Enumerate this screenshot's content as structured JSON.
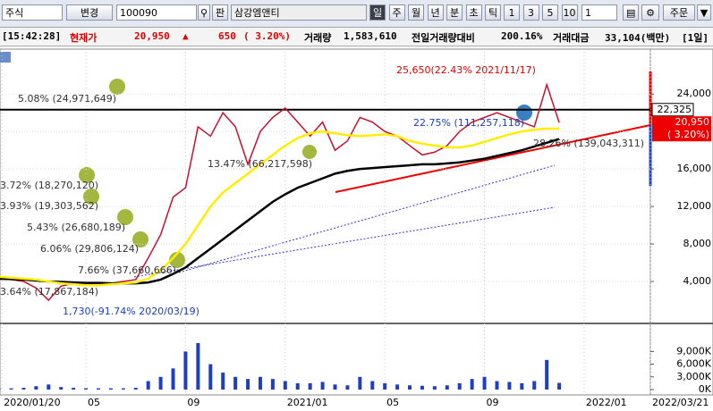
{
  "toolbar": {
    "market": "주식",
    "change": "변경",
    "code": "100090",
    "board": "판",
    "name": "삼강엠앤티",
    "periods": [
      "일",
      "주",
      "월",
      "년",
      "분",
      "초",
      "틱"
    ],
    "multipliers": [
      "1",
      "3",
      "5",
      "10"
    ],
    "count": "1",
    "order": "주문"
  },
  "status": {
    "time": "[15:42:28]",
    "price_label": "현재가",
    "price": "20,950",
    "arrow": "▲",
    "diff": "650",
    "rate": "( 3.20%)",
    "volume_label": "거래량",
    "volume": "1,583,610",
    "prev_label": "전일거래량대비",
    "prev": "200.16%",
    "amount_label": "거래대금",
    "amount": "33,104(백만)",
    "period": "[1일]"
  },
  "chart_data": {
    "type": "line",
    "x": [
      0.5,
      1,
      1.5,
      2,
      2.5,
      3,
      3.5,
      4,
      4.5,
      5,
      5.5,
      6,
      6.5,
      7,
      7.5,
      8,
      8.5,
      9,
      9.5,
      10,
      10.5,
      11,
      11.5,
      12,
      12.5,
      13,
      13.5,
      14,
      14.5,
      15,
      15.5,
      16,
      16.5,
      17,
      17.5,
      18,
      18.5,
      19,
      19.5,
      20,
      20.5,
      21,
      21.5,
      22,
      22.5,
      23
    ],
    "xlim": [
      0.55,
      26.66
    ],
    "xticks": [
      {
        "value": 0.63,
        "label": "2020/01/20"
      },
      {
        "value": 4,
        "label": "05"
      },
      {
        "value": 8,
        "label": "09"
      },
      {
        "value": 12,
        "label": "2021/01"
      },
      {
        "value": 16,
        "label": "05"
      },
      {
        "value": 20,
        "label": "09"
      },
      {
        "value": 24,
        "label": "2022/01"
      },
      {
        "value": 26.66,
        "label": "2022/03/21"
      }
    ],
    "ylim": [
      0,
      28500
    ],
    "yticks": [
      {
        "value": 4000,
        "label": "4,000"
      },
      {
        "value": 8000,
        "label": "8,000"
      },
      {
        "value": 12000,
        "label": "12,000"
      },
      {
        "value": 16000,
        "label": "16,000"
      },
      {
        "value": 20000,
        "label": "20,000"
      },
      {
        "value": 24000,
        "label": "24,000"
      }
    ],
    "series": [
      {
        "color": "#c8102e",
        "values": [
          4300,
          4200,
          4000,
          3300,
          2000,
          3500,
          3800,
          3700,
          3900,
          3800,
          4000,
          4200,
          6500,
          9000,
          13000,
          14000,
          20500,
          19500,
          22000,
          20500,
          16500,
          20000,
          21500,
          22500,
          21000,
          19500,
          21000,
          18000,
          19000,
          21500,
          21000,
          20000,
          19500,
          18500,
          17500,
          17800,
          18500,
          20000,
          21000,
          21500,
          22000,
          21500,
          21000,
          20500,
          25000,
          20950
        ]
      },
      {
        "color": "#000000",
        "values": [
          4300,
          4250,
          4200,
          4100,
          4000,
          3950,
          3900,
          3850,
          3850,
          3800,
          3800,
          3800,
          3900,
          4200,
          4800,
          5500,
          6500,
          7500,
          8500,
          9500,
          10500,
          11500,
          12500,
          13300,
          14000,
          14500,
          15000,
          15500,
          15800,
          16000,
          16100,
          16200,
          16300,
          16400,
          16500,
          16500,
          16600,
          16700,
          16900,
          17100,
          17400,
          17700,
          18000,
          18400,
          18800,
          19200
        ]
      },
      {
        "color": "#ffee00",
        "values": [
          4500,
          4400,
          4300,
          4200,
          4000,
          3800,
          3700,
          3600,
          3600,
          3700,
          3800,
          3900,
          4300,
          5200,
          6500,
          8000,
          10000,
          12000,
          13500,
          14500,
          15500,
          16500,
          17500,
          18500,
          19300,
          19800,
          20000,
          19800,
          19600,
          19500,
          19600,
          19700,
          19500,
          19000,
          18700,
          18500,
          18300,
          18300,
          18500,
          18900,
          19300,
          19700,
          20000,
          20200,
          20300,
          20300
        ]
      }
    ],
    "reference": {
      "value": 22325,
      "label": "22,325"
    },
    "price_marker": {
      "value": 20950,
      "label": "20,950",
      "change": "( 3.20%)"
    },
    "annotations": [
      "25,650(22.43% 2021/11/17)",
      "5.08% (24,971,649)",
      "22.75% (111,257,118)",
      "13.47% (66,217,598)",
      "3.72% (18,270,120)",
      "3.93% (19,303,562)",
      "5.43% (26,680,189)",
      "6.06% (29,806,124)",
      "7.66% (37,660,666)",
      "3.64% (17,867,184)",
      "28.26% (139,043,311)",
      "1,730(-91.74% 2020/03/19)"
    ],
    "volume": {
      "color": "#1f3fbf",
      "values": [
        300,
        300,
        400,
        800,
        1200,
        600,
        400,
        300,
        300,
        300,
        300,
        400,
        2000,
        3000,
        5000,
        9000,
        11000,
        6000,
        4000,
        3000,
        2500,
        3000,
        2500,
        2000,
        1500,
        1500,
        1800,
        1200,
        1000,
        3000,
        2000,
        1500,
        1200,
        1000,
        900,
        800,
        1000,
        1500,
        2500,
        3000,
        2000,
        1800,
        1500,
        2000,
        7000,
        1583.61
      ],
      "ylim": [
        0,
        15000
      ],
      "yticks": [
        {
          "value": 0,
          "label": "0K"
        },
        {
          "value": 3000,
          "label": "3,000K"
        },
        {
          "value": 6000,
          "label": "6,000K"
        },
        {
          "value": 9000,
          "label": "9,000K"
        }
      ]
    }
  }
}
